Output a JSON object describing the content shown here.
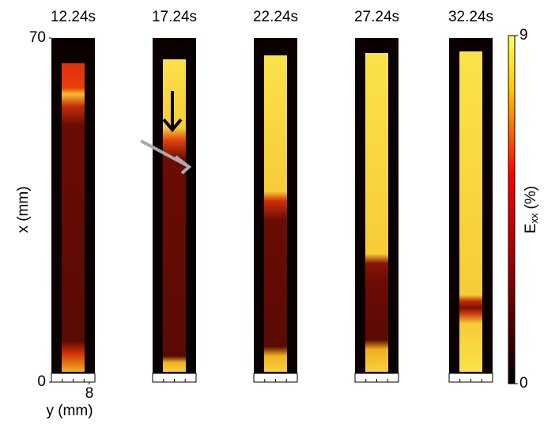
{
  "chart_data": {
    "type": "strain-fields",
    "panel_titles": [
      "12.24s",
      "17.24s",
      "22.24s",
      "27.24s",
      "32.24s"
    ],
    "y_label": "x (mm)",
    "x_label": "y (mm)",
    "ylim": [
      0,
      70
    ],
    "yticks": [
      0,
      70
    ],
    "xlim": [
      0,
      8
    ],
    "xticks": [
      8
    ],
    "colorbar": {
      "label": "E",
      "label_sub": "xx",
      "label_unit": "(%)",
      "clim": [
        0,
        9
      ],
      "ticks": [
        0,
        9
      ]
    }
  }
}
